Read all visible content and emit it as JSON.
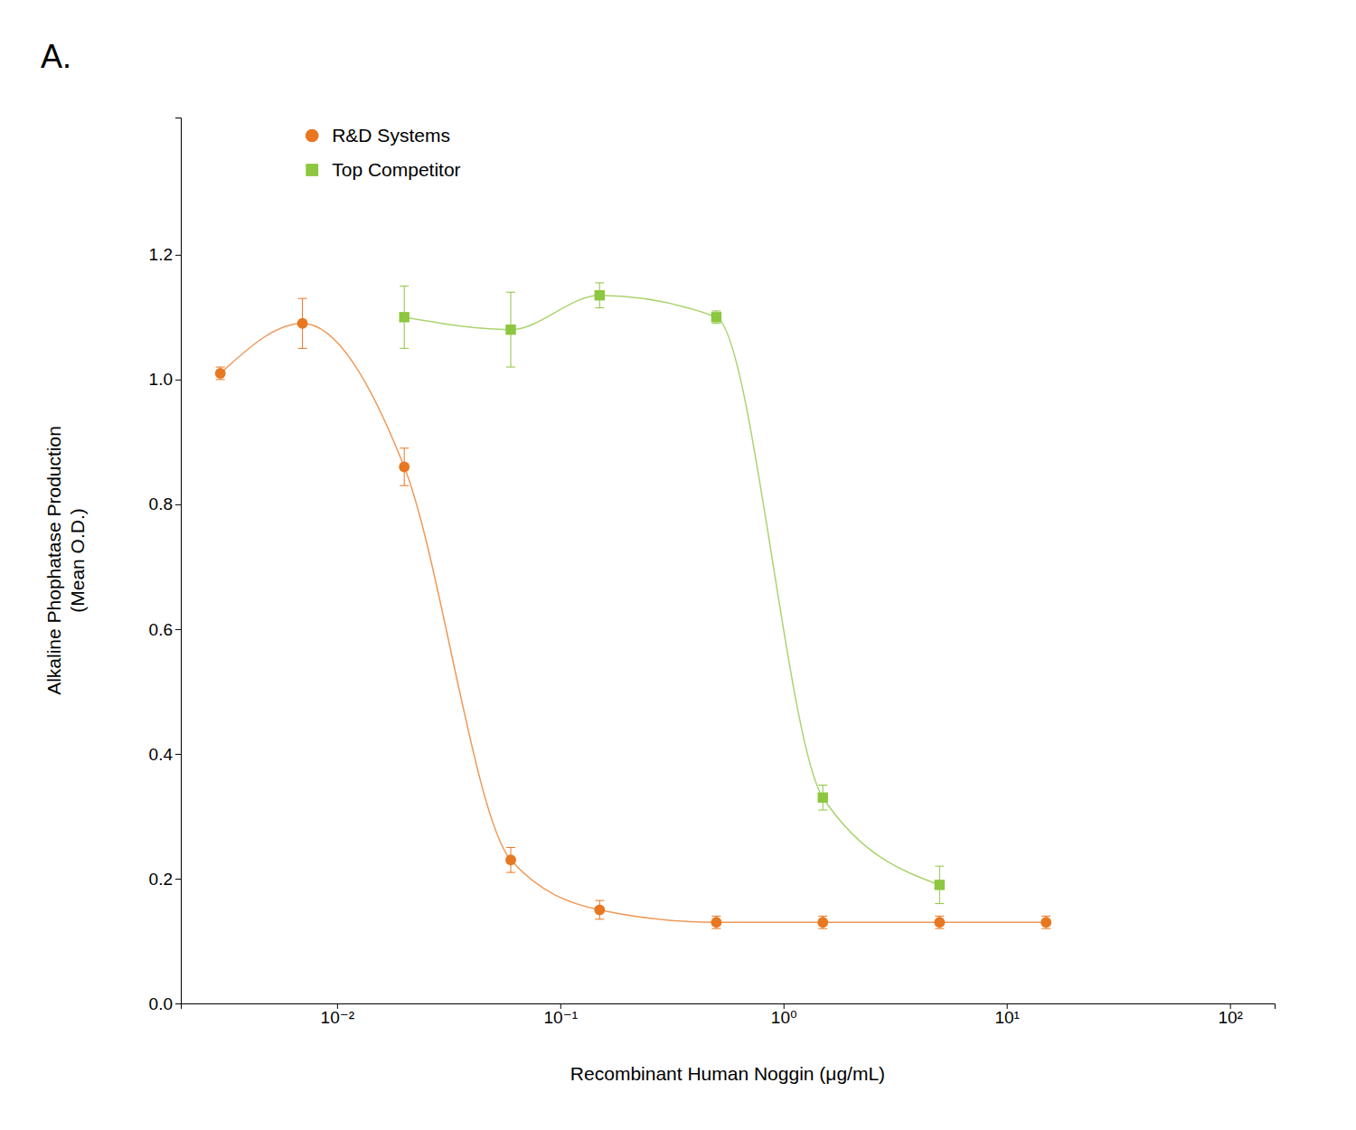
{
  "chart_data": {
    "type": "line",
    "title": "A.",
    "x_label": "Recombinant Human Noggin (μg/mL)",
    "y_label": "Alkaline Phophatase Production\n(Mean O.D.)",
    "log": "x",
    "xlim": [
      0.0019952623149688794,
      158.48931924611142
    ],
    "xticks": [
      {
        "value": 0.01,
        "label": "10⁻²"
      },
      {
        "value": 0.1,
        "label": "10⁻¹"
      },
      {
        "value": 1,
        "label": "10⁰"
      },
      {
        "value": 10,
        "label": "10¹"
      },
      {
        "value": 100,
        "label": "10²"
      }
    ],
    "ylim": [
      0,
      1.42
    ],
    "yticks": [
      {
        "value": 0,
        "label": "0.0"
      },
      0.2,
      0.4,
      0.6,
      0.8,
      {
        "value": 1,
        "label": "1.0"
      },
      1.2
    ],
    "grid": false,
    "legend": "upper left",
    "series": [
      {
        "name": "R&D Systems",
        "color": "#E87722",
        "marker": "circle",
        "x": [
          0.003,
          0.007,
          0.02,
          0.06,
          0.15,
          0.5,
          1.5,
          5.0,
          15.0
        ],
        "values": [
          1.01,
          1.09,
          0.86,
          0.23,
          0.15,
          0.13,
          0.13,
          0.13,
          0.13
        ],
        "yerr": [
          0.01,
          0.04,
          0.03,
          0.02,
          0.015,
          0.01,
          0.01,
          0.01,
          0.01
        ]
      },
      {
        "name": "Top Competitor",
        "color": "#8DC63F",
        "marker": "square",
        "x": [
          0.02,
          0.06,
          0.15,
          0.5,
          1.5,
          5.0
        ],
        "values": [
          1.1,
          1.08,
          1.135,
          1.1,
          0.33,
          0.19
        ],
        "yerr": [
          0.05,
          0.06,
          0.02,
          0.01,
          0.02,
          0.03
        ]
      }
    ]
  }
}
